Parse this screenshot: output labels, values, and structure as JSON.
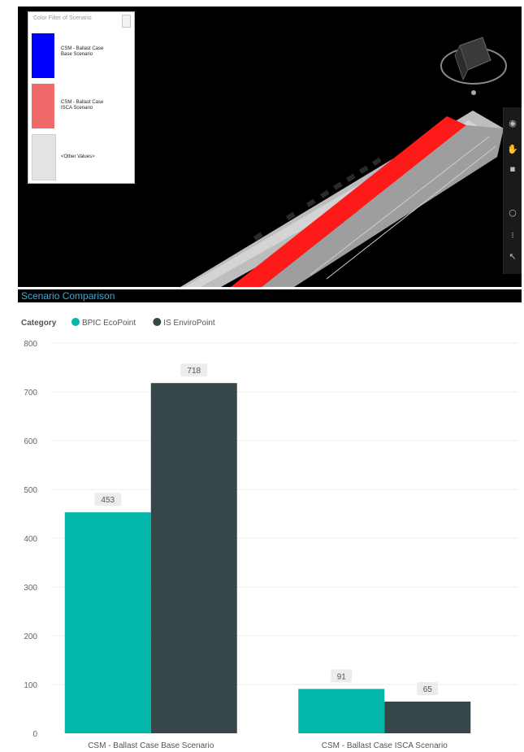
{
  "viewer": {
    "legend": {
      "title": "Color Filter of Scenario",
      "items": [
        {
          "label": "CSM - Ballast Case Base Scenario",
          "color": "#0000ff"
        },
        {
          "label": "CSM - Ballast Case ISCA Scenario",
          "color": "#f06a6a"
        },
        {
          "label": "<Other Values>",
          "color": "#e3e3e3"
        }
      ]
    },
    "toolbar_icons": [
      "orbit-icon",
      "pan-icon",
      "fit-icon",
      "circle-icon",
      "footsteps-icon",
      "pointer-icon"
    ],
    "highlight_color": "#ff1a1a"
  },
  "panel": {
    "title": "Scenario Comparison"
  },
  "chart_data": {
    "type": "bar",
    "legend_title": "Category",
    "legend_position": "top-left",
    "categories": [
      "CSM - Ballast Case Base Scenario",
      "CSM - Ballast Case ISCA Scenario"
    ],
    "series": [
      {
        "name": "BPIC EcoPoint",
        "color": "#01b8aa",
        "values": [
          453,
          91
        ]
      },
      {
        "name": "IS EnviroPoint",
        "color": "#374649",
        "values": [
          718,
          65
        ]
      }
    ],
    "ylim": [
      0,
      800
    ],
    "yticks": [
      0,
      100,
      200,
      300,
      400,
      500,
      600,
      700,
      800
    ],
    "grid": true,
    "data_labels": true
  }
}
